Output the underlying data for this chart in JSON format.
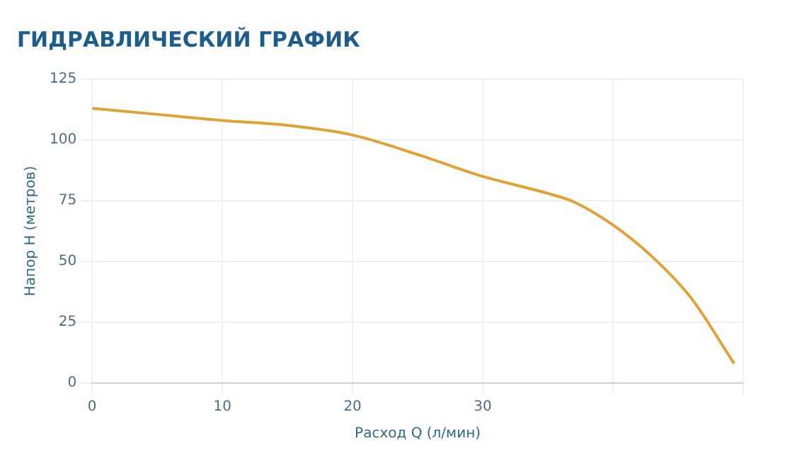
{
  "chart_data": {
    "type": "line",
    "title": "ГИДРАВЛИЧЕСКИЙ ГРАФИК",
    "xlabel": "Расход Q (л/мин)",
    "ylabel": "Напор H (метров)",
    "series": [
      {
        "color": "#e0a234",
        "x": [
          0,
          5,
          10,
          15,
          20,
          25,
          30,
          35,
          37,
          40,
          43,
          46,
          49.3
        ],
        "values": [
          113,
          110.5,
          108,
          106,
          102,
          94,
          85,
          78,
          74.5,
          65,
          52,
          35,
          8
        ]
      }
    ],
    "xlim": [
      0,
      50
    ],
    "xticks": [
      0,
      10,
      20,
      30,
      {
        "value": 40,
        "label": null
      },
      {
        "value": 50,
        "label": null
      }
    ],
    "ylim": [
      0,
      125
    ],
    "yticks": [
      0,
      25,
      50,
      75,
      100,
      125
    ],
    "grid": true,
    "legend": false,
    "marker": "none",
    "line_style": "solid"
  }
}
